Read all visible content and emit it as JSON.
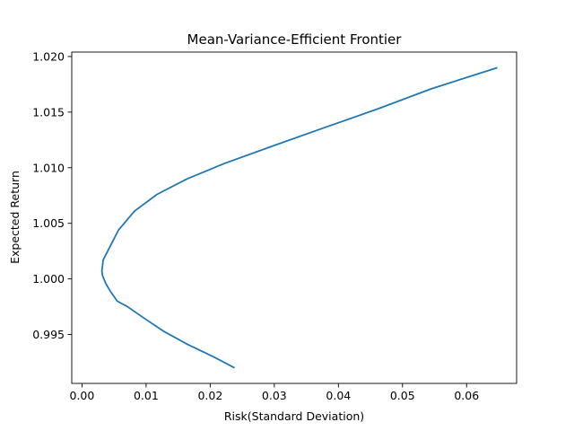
{
  "chart_data": {
    "type": "line",
    "title": "Mean-Variance-Efficient Frontier",
    "xlabel": "Risk(Standard Deviation)",
    "ylabel": "Expected Return",
    "xlim": [
      -0.0016,
      0.0678
    ],
    "ylim": [
      0.9906,
      1.0204
    ],
    "xticks": [
      0.0,
      0.01,
      0.02,
      0.03,
      0.04,
      0.05,
      0.06
    ],
    "xtick_labels": [
      "0.00",
      "0.01",
      "0.02",
      "0.03",
      "0.04",
      "0.05",
      "0.06"
    ],
    "yticks": [
      0.995,
      1.0,
      1.005,
      1.01,
      1.015,
      1.02
    ],
    "ytick_labels": [
      "0.995",
      "1.000",
      "1.005",
      "1.010",
      "1.015",
      "1.020"
    ],
    "grid": false,
    "series": [
      {
        "color": "#1f77b4",
        "x": [
          0.0238,
          0.0205,
          0.0165,
          0.0127,
          0.0096,
          0.0071,
          0.0055,
          0.0044,
          0.0037,
          0.0032,
          0.0031,
          0.0033,
          0.0041,
          0.0057,
          0.0082,
          0.0117,
          0.0164,
          0.0223,
          0.0295,
          0.0383,
          0.0462,
          0.0545,
          0.0648
        ],
        "y": [
          0.992,
          0.993,
          0.9941,
          0.9953,
          0.9965,
          0.9975,
          0.998,
          0.9989,
          0.9996,
          1.0003,
          1.0007,
          1.0017,
          1.0026,
          1.0044,
          1.0061,
          1.0076,
          1.009,
          1.0104,
          1.0119,
          1.0137,
          1.0153,
          1.0171,
          1.019
        ]
      }
    ]
  }
}
